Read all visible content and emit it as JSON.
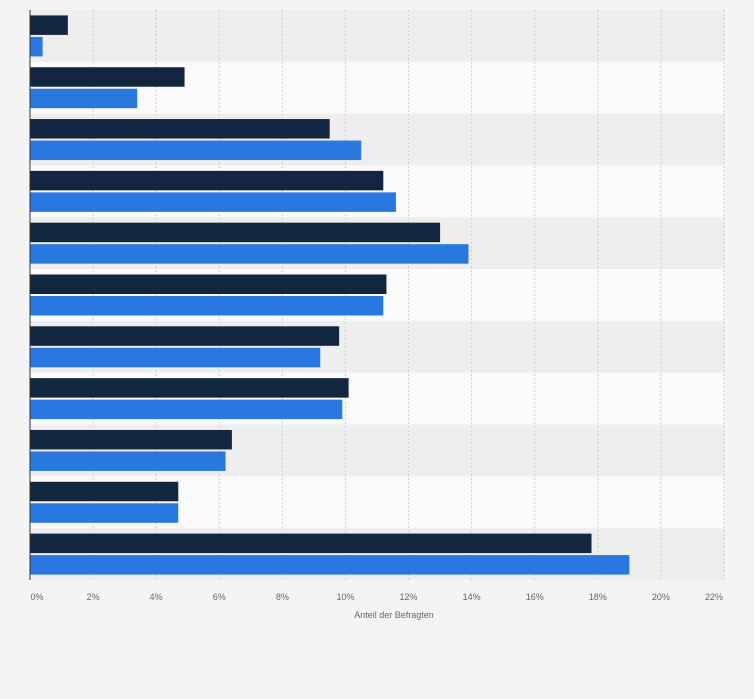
{
  "chart_data": {
    "type": "bar",
    "orientation": "horizontal",
    "title": "",
    "xlabel": "Anteil der Befragten",
    "ylabel": "",
    "xlim": [
      0,
      22
    ],
    "x_ticks": [
      0,
      2,
      4,
      6,
      8,
      10,
      12,
      14,
      16,
      18,
      20,
      22
    ],
    "x_tick_labels": [
      "0%",
      "2%",
      "4%",
      "6%",
      "8%",
      "10%",
      "12%",
      "14%",
      "16%",
      "18%",
      "20%",
      "22%"
    ],
    "grid": true,
    "legend": "none",
    "category_count": 11,
    "series": [
      {
        "color": "#12263f",
        "values": [
          1.2,
          4.9,
          9.5,
          11.2,
          13.0,
          11.3,
          9.8,
          10.1,
          6.4,
          4.7,
          17.8
        ]
      },
      {
        "color": "#2878e0",
        "values": [
          0.4,
          3.4,
          10.5,
          11.6,
          13.9,
          11.2,
          9.2,
          9.9,
          6.2,
          4.7,
          19.0
        ]
      }
    ]
  }
}
